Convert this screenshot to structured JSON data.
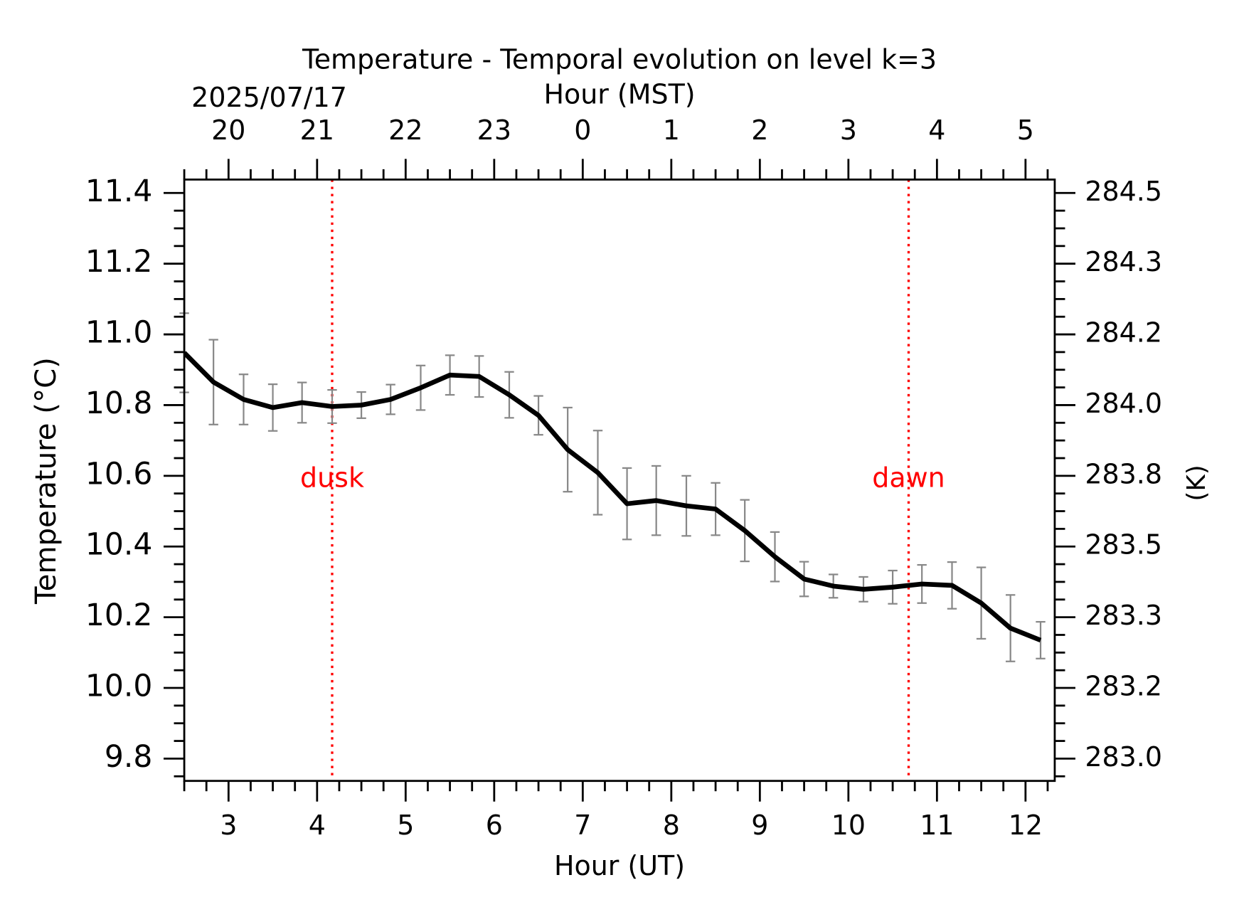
{
  "chart_data": {
    "type": "line",
    "title": "Temperature - Temporal evolution on level k=3",
    "xlabel": "Hour (UT)",
    "ylabel": "Temperature (°C)",
    "y2label": "(K)",
    "x2label": "Hour (MST)",
    "x2date": "2025/07/17",
    "x": [
      2.5,
      2.83,
      3.17,
      3.5,
      3.83,
      4.17,
      4.5,
      4.83,
      5.17,
      5.5,
      5.83,
      6.17,
      6.5,
      6.83,
      7.17,
      7.5,
      7.83,
      8.17,
      8.5,
      8.83,
      9.17,
      9.5,
      9.83,
      10.17,
      10.5,
      10.83,
      11.17,
      11.5,
      11.83,
      12.17
    ],
    "series": [
      {
        "name": "Temperature",
        "color": "#000000",
        "error_color": "#888888",
        "values": [
          10.948,
          10.865,
          10.816,
          10.793,
          10.807,
          10.796,
          10.8,
          10.816,
          10.849,
          10.885,
          10.881,
          10.829,
          10.771,
          10.674,
          10.609,
          10.521,
          10.53,
          10.515,
          10.506,
          10.445,
          10.371,
          10.308,
          10.288,
          10.279,
          10.285,
          10.294,
          10.29,
          10.24,
          10.169,
          10.135
        ],
        "errors": [
          0.112,
          0.12,
          0.071,
          0.066,
          0.057,
          0.047,
          0.037,
          0.042,
          0.063,
          0.056,
          0.058,
          0.065,
          0.055,
          0.119,
          0.119,
          0.101,
          0.098,
          0.085,
          0.074,
          0.087,
          0.07,
          0.049,
          0.033,
          0.035,
          0.047,
          0.054,
          0.066,
          0.101,
          0.094,
          0.052
        ]
      }
    ],
    "xlim": [
      2.5,
      12.33
    ],
    "xticks": [
      3,
      4,
      5,
      6,
      7,
      8,
      9,
      10,
      11,
      12
    ],
    "ylim": [
      9.737,
      11.438
    ],
    "yticks": [
      {
        "value": 9.8,
        "label": "9.8"
      },
      {
        "value": 10.0,
        "label": "10.0"
      },
      {
        "value": 10.2,
        "label": "10.2"
      },
      {
        "value": 10.4,
        "label": "10.4"
      },
      {
        "value": 10.6,
        "label": "10.6"
      },
      {
        "value": 10.8,
        "label": "10.8"
      },
      {
        "value": 11.0,
        "label": "11.0"
      },
      {
        "value": 11.2,
        "label": "11.2"
      },
      {
        "value": 11.4,
        "label": "11.4"
      }
    ],
    "y2lim": [
      282.887,
      284.588
    ],
    "y2ticks": [
      {
        "value": 282.95,
        "label": "283.0"
      },
      {
        "value": 283.15,
        "label": "283.2"
      },
      {
        "value": 283.35,
        "label": "283.3"
      },
      {
        "value": 283.55,
        "label": "283.5"
      },
      {
        "value": 283.75,
        "label": "283.8"
      },
      {
        "value": 283.95,
        "label": "284.0"
      },
      {
        "value": 284.15,
        "label": "284.2"
      },
      {
        "value": 284.35,
        "label": "284.3"
      },
      {
        "value": 284.55,
        "label": "284.5"
      }
    ],
    "x2lim": [
      19.5,
      29.33
    ],
    "x2ticks": [
      20,
      21,
      22,
      23,
      {
        "value": 24,
        "label": "0"
      },
      {
        "value": 25,
        "label": "1"
      },
      {
        "value": 26,
        "label": "2"
      },
      {
        "value": 27,
        "label": "3"
      },
      {
        "value": 28,
        "label": "4"
      },
      {
        "value": 29,
        "label": "5"
      }
    ],
    "vlines": [
      {
        "x": 4.17,
        "label": "dusk",
        "color": "#ff0000"
      },
      {
        "x": 10.68,
        "label": "dawn",
        "color": "#ff0000"
      }
    ],
    "vline_label_y": 10.59,
    "grid": false
  }
}
